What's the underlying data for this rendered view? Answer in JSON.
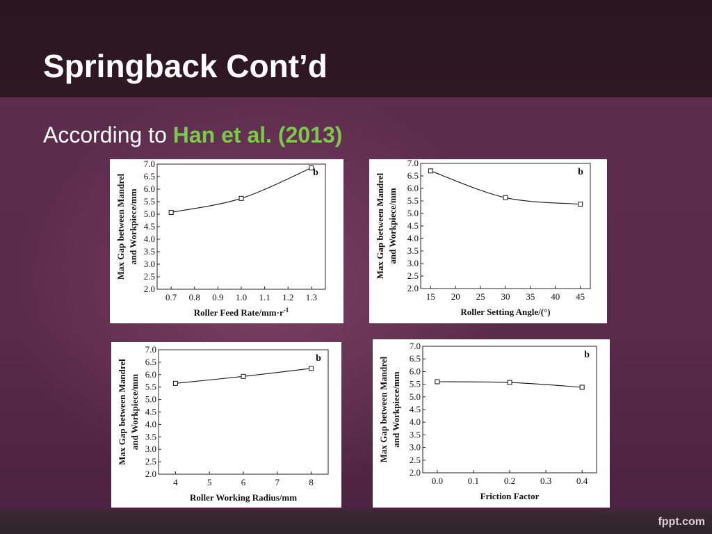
{
  "slide": {
    "title": "Springback Cont’d",
    "subtitle_prefix": "According to ",
    "subtitle_ref": "Han et al. (2013)",
    "accent_color": "#7cc84a",
    "footer_logo": "fppt.com"
  },
  "chart_data": [
    {
      "type": "line",
      "panel_label": "b",
      "xlabel": "Roller Feed Rate/mm·r",
      "xlabel_sup": "-1",
      "ylabel": [
        "Max Gap between Mandrel",
        "and Workpiece/mm"
      ],
      "x": [
        0.7,
        1.0,
        1.3
      ],
      "y": [
        5.07,
        5.63,
        6.85
      ],
      "xticks": [
        "0.7",
        "0.8",
        "0.9",
        "1.0",
        "1.1",
        "1.2",
        "1.3"
      ],
      "xtick_values": [
        0.7,
        0.8,
        0.9,
        1.0,
        1.1,
        1.2,
        1.3
      ],
      "xlim": [
        0.64,
        1.36
      ],
      "yticks": [
        "2.0",
        "2.5",
        "3.0",
        "3.5",
        "4.0",
        "4.5",
        "5.0",
        "5.5",
        "6.0",
        "6.5",
        "7.0"
      ],
      "ylim": [
        2.0,
        7.0
      ]
    },
    {
      "type": "line",
      "panel_label": "b",
      "xlabel": "Roller Setting Angle/(°)",
      "xlabel_sup": "",
      "ylabel": [
        "Max Gap between Mandrel",
        "and Workpiece/mm"
      ],
      "x": [
        15,
        30,
        45
      ],
      "y": [
        6.7,
        5.63,
        5.37
      ],
      "xticks": [
        "15",
        "20",
        "25",
        "30",
        "35",
        "40",
        "45"
      ],
      "xtick_values": [
        15,
        20,
        25,
        30,
        35,
        40,
        45
      ],
      "xlim": [
        13,
        47
      ],
      "yticks": [
        "2.0",
        "2.5",
        "3.0",
        "3.5",
        "4.0",
        "4.5",
        "5.0",
        "5.5",
        "6.0",
        "6.5",
        "7.0"
      ],
      "ylim": [
        2.0,
        7.0
      ]
    },
    {
      "type": "line",
      "panel_label": "b",
      "xlabel": "Roller Working Radius/mm",
      "xlabel_sup": "",
      "ylabel": [
        "Max Gap between Mandrel",
        "and Workpiece/mm"
      ],
      "x": [
        4,
        6,
        8
      ],
      "y": [
        5.65,
        5.93,
        6.25
      ],
      "xticks": [
        "4",
        "5",
        "6",
        "7",
        "8"
      ],
      "xtick_values": [
        4,
        5,
        6,
        7,
        8
      ],
      "xlim": [
        3.5,
        8.5
      ],
      "yticks": [
        "2.0",
        "2.5",
        "3.0",
        "3.5",
        "4.0",
        "4.5",
        "5.0",
        "5.5",
        "6.0",
        "6.5",
        "7.0"
      ],
      "ylim": [
        2.0,
        7.0
      ]
    },
    {
      "type": "line",
      "panel_label": "b",
      "xlabel": "Friction Factor",
      "xlabel_sup": "",
      "ylabel": [
        "Max Gap between Mandrel",
        "and Workpiece/mm"
      ],
      "x": [
        0.0,
        0.2,
        0.4
      ],
      "y": [
        5.6,
        5.57,
        5.38
      ],
      "xticks": [
        "0.0",
        "0.1",
        "0.2",
        "0.3",
        "0.4"
      ],
      "xtick_values": [
        0.0,
        0.1,
        0.2,
        0.3,
        0.4
      ],
      "xlim": [
        -0.04,
        0.44
      ],
      "yticks": [
        "2.0",
        "2.5",
        "3.0",
        "3.5",
        "4.0",
        "4.5",
        "5.0",
        "5.5",
        "6.0",
        "6.5",
        "7.0"
      ],
      "ylim": [
        2.0,
        7.0
      ]
    }
  ]
}
